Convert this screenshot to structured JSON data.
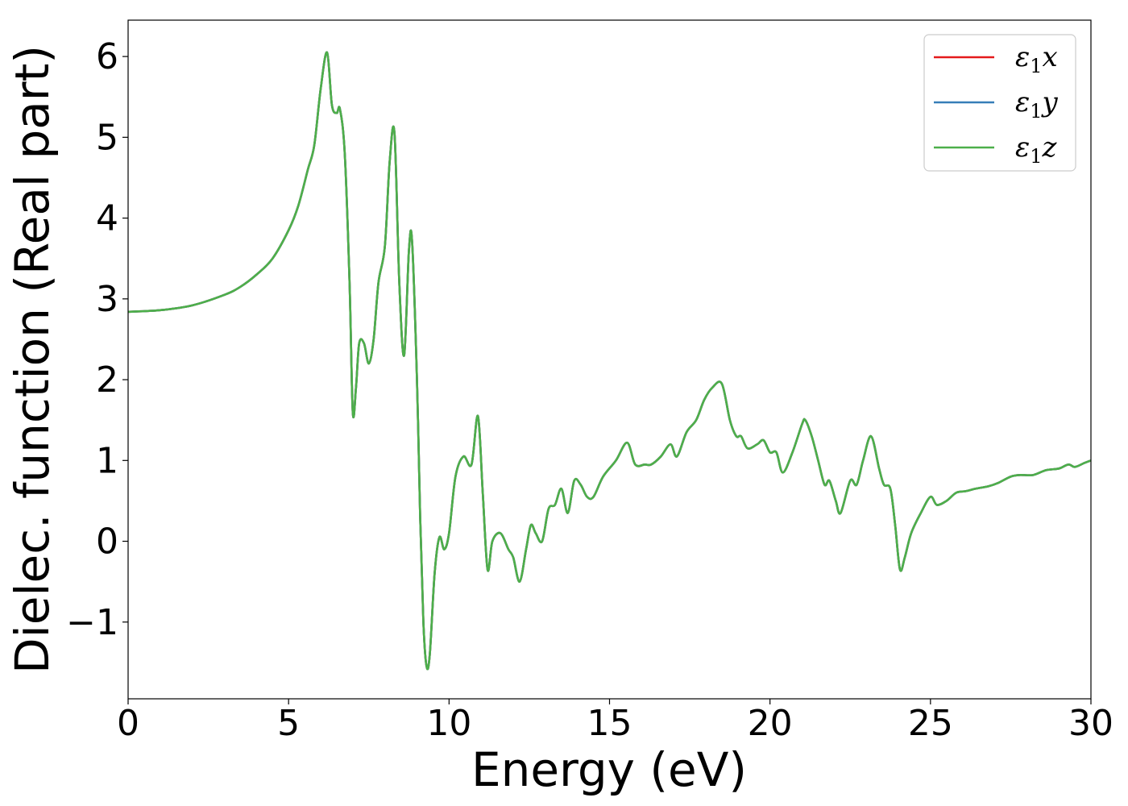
{
  "chart_data": {
    "type": "line",
    "title": "",
    "xlabel": "Energy (eV)",
    "ylabel": "Dielec. function (Real part)",
    "xlim": [
      0,
      30
    ],
    "ylim": [
      -1.95,
      6.45
    ],
    "xticks": [
      0,
      5,
      10,
      15,
      20,
      25,
      30
    ],
    "yticks": [
      -1,
      0,
      1,
      2,
      3,
      4,
      5,
      6
    ],
    "ytick_labels": [
      "−1",
      "0",
      "1",
      "2",
      "3",
      "4",
      "5",
      "6"
    ],
    "grid": false,
    "legend_position": "top-right",
    "colors": {
      "x": "#e41a1c",
      "y": "#377eb8",
      "z": "#4daf4a"
    },
    "series": [
      {
        "name": "ε1x",
        "symbol": "ε",
        "sub": "1",
        "axis": "x",
        "color": "#e41a1c",
        "x": [
          0,
          1,
          2,
          3,
          3.5,
          4,
          4.5,
          5,
          5.3,
          5.6,
          5.8,
          6.0,
          6.2,
          6.35,
          6.5,
          6.6,
          6.75,
          6.9,
          7.0,
          7.1,
          7.2,
          7.35,
          7.5,
          7.65,
          7.8,
          8.0,
          8.15,
          8.3,
          8.45,
          8.6,
          8.75,
          8.85,
          9.0,
          9.1,
          9.2,
          9.3,
          9.4,
          9.55,
          9.7,
          9.85,
          10.0,
          10.2,
          10.45,
          10.7,
          10.9,
          11.05,
          11.2,
          11.35,
          11.6,
          11.85,
          12.0,
          12.2,
          12.4,
          12.55,
          12.7,
          12.9,
          13.1,
          13.3,
          13.5,
          13.7,
          13.9,
          14.1,
          14.3,
          14.5,
          14.8,
          15.2,
          15.55,
          15.8,
          16.1,
          16.3,
          16.6,
          16.9,
          17.1,
          17.4,
          17.7,
          17.95,
          18.2,
          18.5,
          18.75,
          18.95,
          19.1,
          19.3,
          19.6,
          19.8,
          20.0,
          20.2,
          20.4,
          20.7,
          21.0,
          21.1,
          21.3,
          21.5,
          21.7,
          21.85,
          22.05,
          22.2,
          22.5,
          22.7,
          22.9,
          23.15,
          23.4,
          23.55,
          23.75,
          23.9,
          24.05,
          24.2,
          24.4,
          24.7,
          25.0,
          25.2,
          25.5,
          25.8,
          26.1,
          26.4,
          26.8,
          27.1,
          27.5,
          27.8,
          28.2,
          28.6,
          29.0,
          29.3,
          29.5,
          29.8,
          30.0
        ],
        "y": [
          2.84,
          2.86,
          2.92,
          3.05,
          3.15,
          3.3,
          3.5,
          3.85,
          4.15,
          4.6,
          4.9,
          5.6,
          6.05,
          5.4,
          5.3,
          5.35,
          4.8,
          3.2,
          1.6,
          1.9,
          2.45,
          2.45,
          2.2,
          2.5,
          3.2,
          3.65,
          4.7,
          5.05,
          3.2,
          2.3,
          3.6,
          3.7,
          2.0,
          0.3,
          -1.0,
          -1.55,
          -1.4,
          -0.4,
          0.05,
          -0.1,
          0.1,
          0.8,
          1.05,
          0.95,
          1.55,
          0.6,
          -0.35,
          0.0,
          0.1,
          -0.1,
          -0.2,
          -0.5,
          -0.1,
          0.2,
          0.1,
          0.0,
          0.4,
          0.45,
          0.65,
          0.35,
          0.75,
          0.7,
          0.55,
          0.55,
          0.8,
          1.0,
          1.22,
          0.95,
          0.95,
          0.95,
          1.05,
          1.2,
          1.05,
          1.35,
          1.5,
          1.75,
          1.9,
          1.95,
          1.5,
          1.3,
          1.3,
          1.15,
          1.2,
          1.25,
          1.1,
          1.1,
          0.85,
          1.1,
          1.45,
          1.5,
          1.3,
          1.0,
          0.7,
          0.75,
          0.5,
          0.35,
          0.75,
          0.7,
          1.0,
          1.3,
          0.9,
          0.7,
          0.65,
          0.2,
          -0.35,
          -0.2,
          0.1,
          0.35,
          0.55,
          0.45,
          0.5,
          0.6,
          0.62,
          0.65,
          0.68,
          0.72,
          0.8,
          0.82,
          0.82,
          0.88,
          0.9,
          0.95,
          0.92,
          0.97,
          1.0
        ]
      },
      {
        "name": "ε1y",
        "symbol": "ε",
        "sub": "1",
        "axis": "y",
        "color": "#377eb8",
        "same_as": 0
      },
      {
        "name": "ε1z",
        "symbol": "ε",
        "sub": "1",
        "axis": "z",
        "color": "#4daf4a",
        "same_as": 0
      }
    ]
  }
}
